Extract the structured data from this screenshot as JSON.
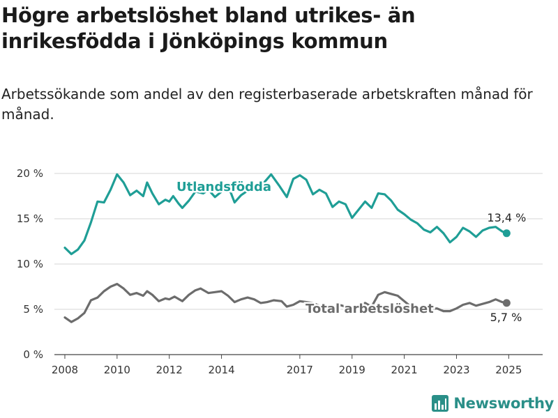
{
  "title": "Högre arbetslöshet bland utrikes- än inrikesfödda i Jönköpings kommun",
  "subtitle": "Arbetssökande som andel av den registerbaserade arbetskraften månad för månad.",
  "brand": {
    "name": "Newsworthy",
    "icon": "bar-chart-logo-icon",
    "color": "#2a8f88"
  },
  "chart_data": {
    "type": "line",
    "y_unit": "%",
    "ylim": [
      0,
      20
    ],
    "yticks": [
      0,
      5,
      10,
      15,
      20
    ],
    "ytick_labels": [
      "0 %",
      "5 %",
      "10 %",
      "15 %",
      "20 %"
    ],
    "xlim": [
      2007.6,
      2026.3
    ],
    "xticks": [
      2008,
      2010,
      2012,
      2014,
      2017,
      2019,
      2021,
      2023,
      2025
    ],
    "xtick_labels": [
      "2008",
      "2010",
      "2012",
      "2014",
      "2017",
      "2019",
      "2021",
      "2023",
      "2025"
    ],
    "grid": "horizontal",
    "series": [
      {
        "name": "Utlandsfödda",
        "color": "#1f9e96",
        "end_label": "13,4 %",
        "points": [
          [
            2008.0,
            11.8
          ],
          [
            2008.25,
            11.1
          ],
          [
            2008.5,
            11.6
          ],
          [
            2008.75,
            12.6
          ],
          [
            2009.0,
            14.6
          ],
          [
            2009.25,
            16.9
          ],
          [
            2009.5,
            16.8
          ],
          [
            2009.75,
            18.2
          ],
          [
            2010.0,
            19.9
          ],
          [
            2010.25,
            19.0
          ],
          [
            2010.5,
            17.6
          ],
          [
            2010.75,
            18.1
          ],
          [
            2011.0,
            17.5
          ],
          [
            2011.15,
            19.0
          ],
          [
            2011.35,
            17.8
          ],
          [
            2011.6,
            16.6
          ],
          [
            2011.85,
            17.1
          ],
          [
            2012.0,
            16.9
          ],
          [
            2012.15,
            17.5
          ],
          [
            2012.35,
            16.7
          ],
          [
            2012.5,
            16.2
          ],
          [
            2012.75,
            17.0
          ],
          [
            2013.0,
            18.0
          ],
          [
            2013.3,
            17.8
          ],
          [
            2013.5,
            18.2
          ],
          [
            2013.75,
            17.4
          ],
          [
            2014.0,
            18.0
          ],
          [
            2014.3,
            18.3
          ],
          [
            2014.5,
            16.8
          ],
          [
            2014.75,
            17.6
          ],
          [
            2015.0,
            18.1
          ],
          [
            2015.3,
            18.5
          ],
          [
            2015.6,
            18.9
          ],
          [
            2015.9,
            19.9
          ],
          [
            2016.2,
            18.7
          ],
          [
            2016.5,
            17.4
          ],
          [
            2016.75,
            19.4
          ],
          [
            2017.0,
            19.8
          ],
          [
            2017.25,
            19.3
          ],
          [
            2017.5,
            17.7
          ],
          [
            2017.75,
            18.2
          ],
          [
            2018.0,
            17.8
          ],
          [
            2018.25,
            16.3
          ],
          [
            2018.5,
            16.9
          ],
          [
            2018.75,
            16.6
          ],
          [
            2019.0,
            15.1
          ],
          [
            2019.25,
            16.0
          ],
          [
            2019.5,
            16.9
          ],
          [
            2019.75,
            16.2
          ],
          [
            2020.0,
            17.8
          ],
          [
            2020.25,
            17.7
          ],
          [
            2020.5,
            17.0
          ],
          [
            2020.75,
            16.0
          ],
          [
            2021.0,
            15.5
          ],
          [
            2021.25,
            14.9
          ],
          [
            2021.5,
            14.5
          ],
          [
            2021.75,
            13.8
          ],
          [
            2022.0,
            13.5
          ],
          [
            2022.25,
            14.1
          ],
          [
            2022.5,
            13.4
          ],
          [
            2022.75,
            12.4
          ],
          [
            2023.0,
            13.0
          ],
          [
            2023.25,
            14.0
          ],
          [
            2023.5,
            13.6
          ],
          [
            2023.75,
            13.0
          ],
          [
            2024.0,
            13.7
          ],
          [
            2024.25,
            14.0
          ],
          [
            2024.5,
            14.1
          ],
          [
            2024.75,
            13.6
          ],
          [
            2024.92,
            13.4
          ]
        ]
      },
      {
        "name": "Total arbetslöshet",
        "color": "#6c6c6c",
        "end_label": "5,7 %",
        "points": [
          [
            2008.0,
            4.1
          ],
          [
            2008.25,
            3.6
          ],
          [
            2008.5,
            4.0
          ],
          [
            2008.75,
            4.6
          ],
          [
            2009.0,
            6.0
          ],
          [
            2009.25,
            6.3
          ],
          [
            2009.5,
            7.0
          ],
          [
            2009.75,
            7.5
          ],
          [
            2010.0,
            7.8
          ],
          [
            2010.25,
            7.3
          ],
          [
            2010.5,
            6.6
          ],
          [
            2010.75,
            6.8
          ],
          [
            2011.0,
            6.5
          ],
          [
            2011.15,
            7.0
          ],
          [
            2011.35,
            6.6
          ],
          [
            2011.6,
            5.9
          ],
          [
            2011.85,
            6.2
          ],
          [
            2012.0,
            6.1
          ],
          [
            2012.2,
            6.4
          ],
          [
            2012.5,
            5.9
          ],
          [
            2012.75,
            6.6
          ],
          [
            2013.0,
            7.1
          ],
          [
            2013.2,
            7.3
          ],
          [
            2013.5,
            6.8
          ],
          [
            2013.75,
            6.9
          ],
          [
            2014.0,
            7.0
          ],
          [
            2014.25,
            6.5
          ],
          [
            2014.5,
            5.8
          ],
          [
            2014.75,
            6.1
          ],
          [
            2015.0,
            6.3
          ],
          [
            2015.25,
            6.1
          ],
          [
            2015.5,
            5.7
          ],
          [
            2015.75,
            5.8
          ],
          [
            2016.0,
            6.0
          ],
          [
            2016.3,
            5.9
          ],
          [
            2016.5,
            5.3
          ],
          [
            2016.75,
            5.5
          ],
          [
            2017.0,
            5.9
          ],
          [
            2017.25,
            5.8
          ],
          [
            2017.5,
            5.7
          ],
          [
            2017.75,
            5.4
          ],
          [
            2018.0,
            5.4
          ],
          [
            2018.25,
            5.1
          ],
          [
            2018.5,
            5.5
          ],
          [
            2018.75,
            5.3
          ],
          [
            2019.0,
            5.0
          ],
          [
            2019.25,
            5.4
          ],
          [
            2019.5,
            5.7
          ],
          [
            2019.75,
            5.3
          ],
          [
            2020.0,
            6.6
          ],
          [
            2020.25,
            6.9
          ],
          [
            2020.5,
            6.7
          ],
          [
            2020.75,
            6.5
          ],
          [
            2021.0,
            5.9
          ],
          [
            2021.25,
            5.3
          ],
          [
            2021.5,
            5.0
          ],
          [
            2021.75,
            5.0
          ],
          [
            2022.0,
            5.0
          ],
          [
            2022.25,
            5.1
          ],
          [
            2022.5,
            4.8
          ],
          [
            2022.75,
            4.8
          ],
          [
            2023.0,
            5.1
          ],
          [
            2023.25,
            5.5
          ],
          [
            2023.5,
            5.7
          ],
          [
            2023.75,
            5.4
          ],
          [
            2024.0,
            5.6
          ],
          [
            2024.25,
            5.8
          ],
          [
            2024.5,
            6.1
          ],
          [
            2024.75,
            5.8
          ],
          [
            2024.92,
            5.7
          ]
        ]
      }
    ]
  }
}
